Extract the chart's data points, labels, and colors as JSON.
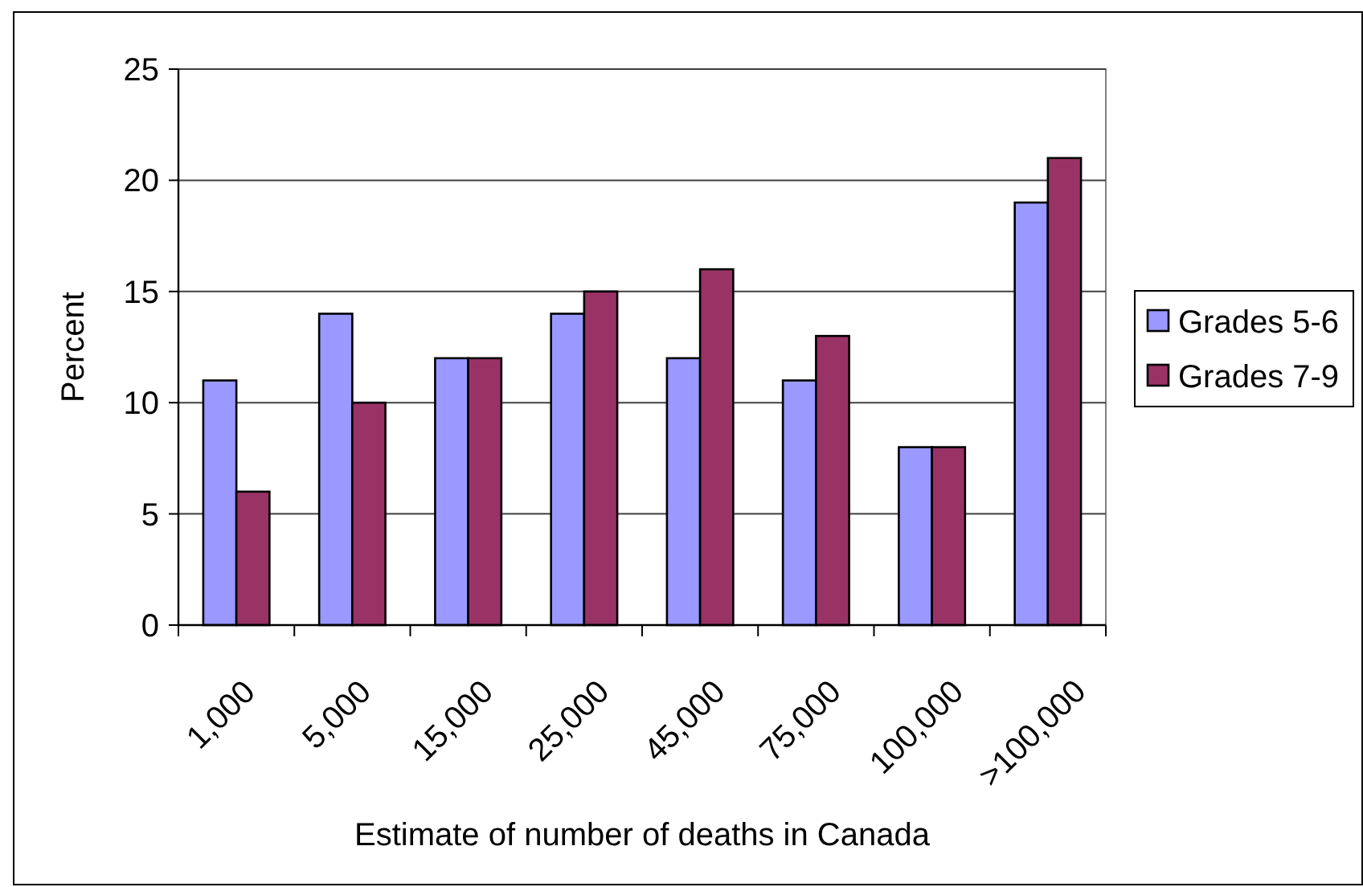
{
  "chart_data": {
    "type": "bar",
    "xlabel": "Estimate of number of deaths in Canada",
    "ylabel": "Percent",
    "categories": [
      "1,000",
      "5,000",
      "15,000",
      "25,000",
      "45,000",
      "75,000",
      "100,000",
      ">100,000"
    ],
    "series": [
      {
        "name": "Grades 5-6",
        "color": "#9999ff",
        "values": [
          11,
          14,
          12,
          14,
          12,
          11,
          8,
          19
        ]
      },
      {
        "name": "Grades 7-9",
        "color": "#993366",
        "values": [
          6,
          10,
          12,
          15,
          16,
          13,
          8,
          21
        ]
      }
    ],
    "ylim": [
      0,
      25
    ],
    "yticks": [
      0,
      5,
      10,
      15,
      20,
      25
    ],
    "grid": "y",
    "legend": "right"
  }
}
